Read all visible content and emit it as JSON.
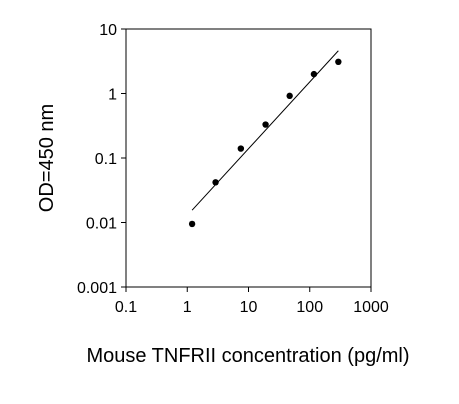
{
  "chart_data": {
    "type": "scatter",
    "xscale": "log",
    "yscale": "log",
    "xlim": [
      0.1,
      1000
    ],
    "ylim": [
      0.001,
      10
    ],
    "xlabel": "Mouse TNFRII concentration (pg/ml)",
    "ylabel": "OD=450 nm",
    "xtick_labels": [
      "0.1",
      "1",
      "10",
      "100",
      "1000"
    ],
    "ytick_labels": [
      "10",
      "1",
      "0.1",
      "0.01",
      "0.001"
    ],
    "xticks": [
      0.1,
      1,
      10,
      100,
      1000
    ],
    "yticks": [
      10,
      1,
      0.1,
      0.01,
      0.001
    ],
    "grid": false,
    "legend": false,
    "points": [
      {
        "x": 1.2,
        "y": 0.0095
      },
      {
        "x": 2.9,
        "y": 0.042
      },
      {
        "x": 7.5,
        "y": 0.14
      },
      {
        "x": 19,
        "y": 0.33
      },
      {
        "x": 47,
        "y": 0.92
      },
      {
        "x": 117,
        "y": 2.0
      },
      {
        "x": 293,
        "y": 3.1
      }
    ],
    "trendline": {
      "x": [
        1.2,
        293
      ],
      "y": [
        0.0155,
        4.6
      ]
    }
  }
}
